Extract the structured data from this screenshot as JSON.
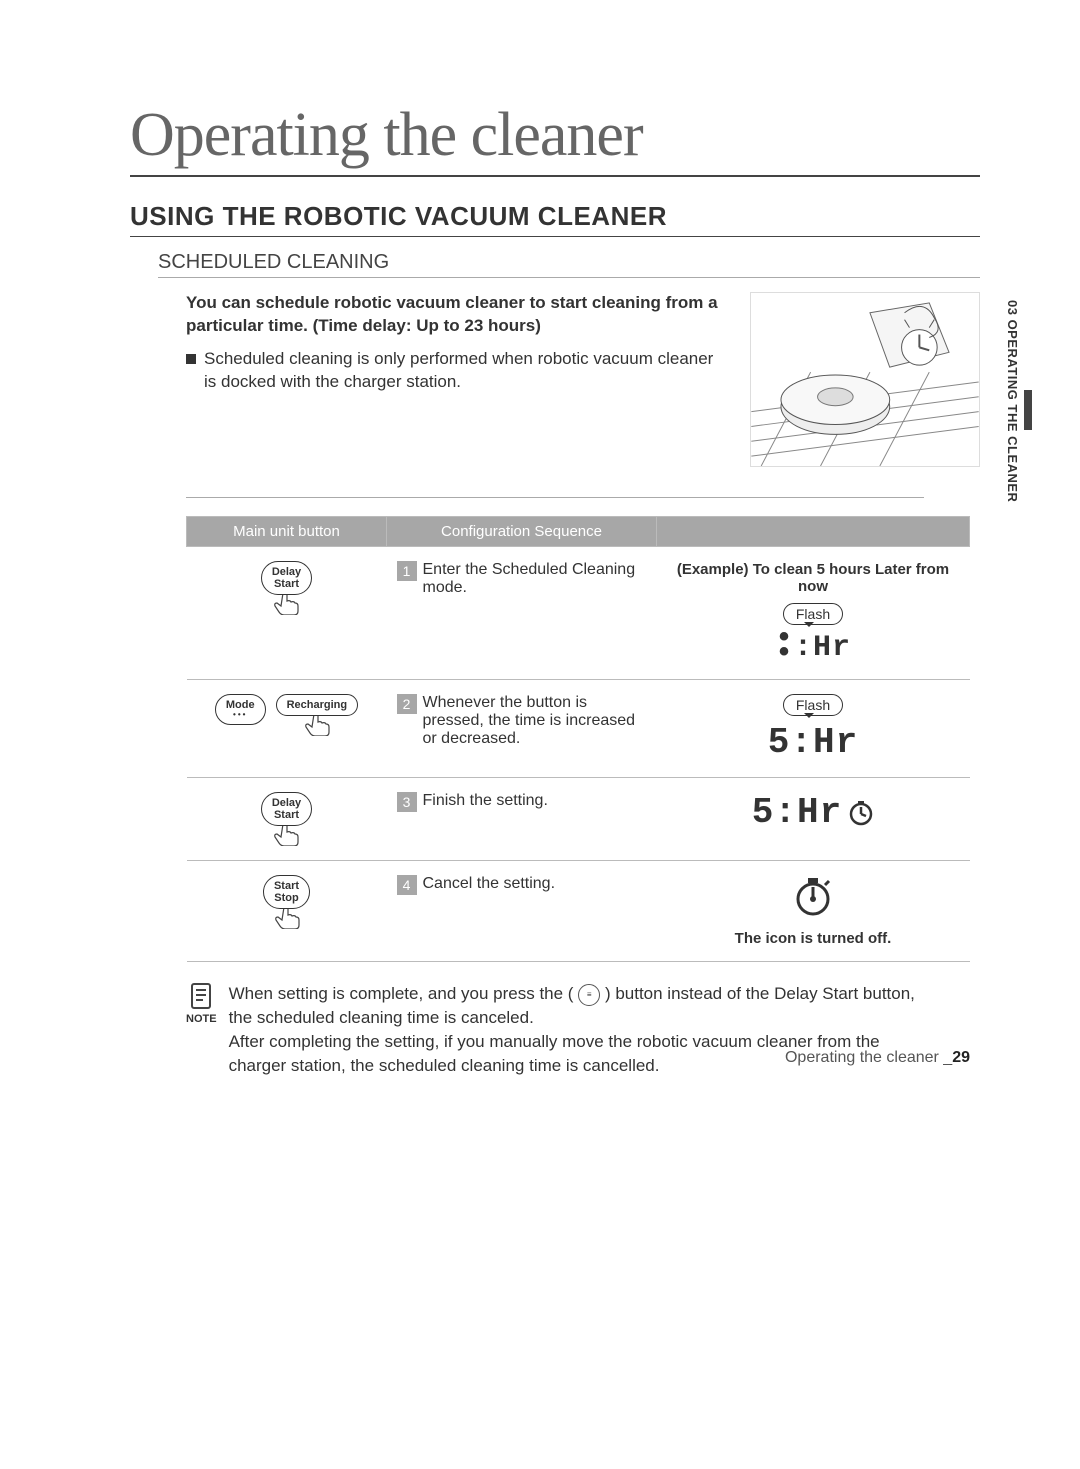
{
  "side_tab": "03 OPERATING THE CLEANER",
  "chapter_title": "Operating the cleaner",
  "section_title": "USING THE ROBOTIC VACUUM CLEANER",
  "subsection_title": "SCHEDULED CLEANING",
  "intro_bold": "You can schedule robotic vacuum cleaner to start cleaning from a particular time. (Time delay: Up to 23 hours)",
  "intro_bullet": "Scheduled cleaning is only performed when robotic vacuum cleaner is docked with the charger station.",
  "table": {
    "headers": {
      "col1": "Main unit button",
      "col2": "Configuration Sequence",
      "col3": ""
    },
    "rows": [
      {
        "buttons": [
          {
            "label": "Delay\nStart",
            "hand": true
          }
        ],
        "step_num": "1",
        "step_text": "Enter the Scheduled Cleaning mode.",
        "example_head": "(Example) To clean 5 hours Later from now",
        "flash_label": "Flash",
        "display": ":Hr",
        "display_prefix_dots": true
      },
      {
        "buttons": [
          {
            "label": "Mode",
            "dots": true
          },
          {
            "label": "Recharging",
            "hand": true
          }
        ],
        "step_num": "2",
        "step_text": "Whenever the button is pressed, the time is increased or decreased.",
        "flash_label": "Flash",
        "display": "5:Hr"
      },
      {
        "buttons": [
          {
            "label": "Delay\nStart",
            "hand": true
          }
        ],
        "step_num": "3",
        "step_text": "Finish the setting.",
        "display": "5:Hr",
        "clock_icon": true
      },
      {
        "buttons": [
          {
            "label": "Start\nStop",
            "hand": true,
            "strike": true
          }
        ],
        "step_num": "4",
        "step_text": "Cancel the setting.",
        "icon_off": true,
        "icon_off_text": "The icon is turned off."
      }
    ]
  },
  "note_label": "NOTE",
  "note_text_1": "When setting is complete, and you press the (",
  "note_text_2": ") button instead of the Delay Start button, the scheduled cleaning time is canceled.",
  "note_text_3": "After completing the setting, if you manually move the robotic vacuum cleaner from the charger station, the scheduled cleaning time is cancelled.",
  "footer_text": "Operating the cleaner _",
  "footer_page": "29",
  "colors": {
    "header_bg": "#a7a7a7",
    "header_fg": "#ffffff",
    "text": "#333333",
    "rule": "#444444"
  }
}
